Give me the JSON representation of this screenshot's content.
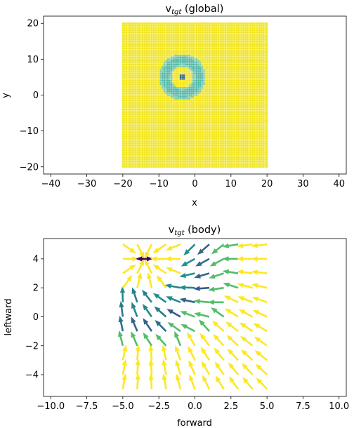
{
  "chart_data": [
    {
      "type": "scatter",
      "title_main": "v",
      "title_sub": "tgt",
      "title_rest": " (global)",
      "xlabel": "x",
      "ylabel": "y",
      "xlim": [
        -42,
        42
      ],
      "ylim": [
        -22,
        22
      ],
      "xticks": [
        -40,
        -30,
        -20,
        -10,
        0,
        10,
        20,
        30,
        40
      ],
      "yticks": [
        -20,
        -10,
        0,
        10,
        20
      ],
      "grid": false,
      "field": {
        "x_range": [
          -20,
          20
        ],
        "y_range": [
          -20,
          20
        ],
        "spacing": 0.5,
        "center": [
          -3.5,
          5
        ],
        "ring_inner_radius": 3,
        "ring_outer_radius": 6.5,
        "far_color": "#f1e51d",
        "ring_color": "#4fb6a4",
        "ring_edge_color": "#7ac9a8",
        "center_color": "#31688e"
      }
    },
    {
      "type": "quiver",
      "title_main": "v",
      "title_sub": "tgt",
      "title_rest": " (body)",
      "xlabel": "forward",
      "ylabel": "leftward",
      "xlim": [
        -10.5,
        10.5
      ],
      "ylim": [
        -5.5,
        5.4
      ],
      "xticks": [
        -10.0,
        -7.5,
        -5.0,
        -2.5,
        0.0,
        2.5,
        5.0,
        7.5,
        10.0
      ],
      "yticks": [
        -4,
        -2,
        0,
        2,
        4
      ],
      "grid": false,
      "field": {
        "x_range": [
          -5,
          5
        ],
        "y_range": [
          -5,
          5
        ],
        "grid_n": 11,
        "target": [
          -3.5,
          4
        ],
        "ring_inner_radius": 3,
        "ring_outer_radius": 6.5,
        "arrow_length": 1.1,
        "colormap": [
          "#440154",
          "#3b528b",
          "#21918c",
          "#5ec962",
          "#fde725"
        ]
      }
    }
  ]
}
